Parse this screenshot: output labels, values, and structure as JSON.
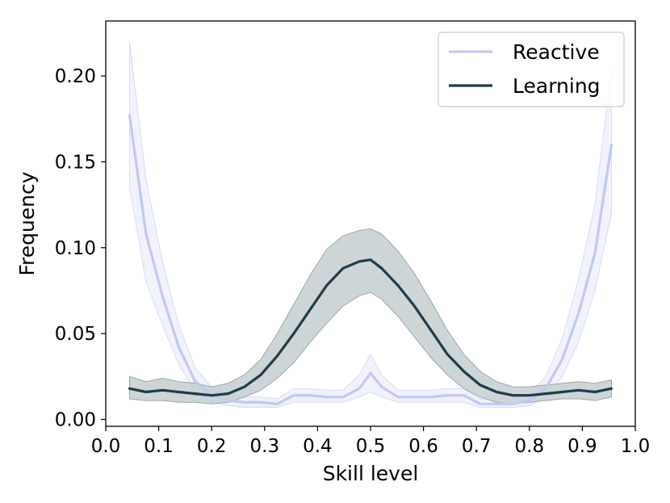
{
  "chart_data": {
    "type": "line",
    "xlabel": "Skill level",
    "ylabel": "Frequency",
    "xlim": [
      0.0,
      1.0
    ],
    "ylim": [
      -0.004,
      0.232
    ],
    "xticks": [
      0.0,
      0.1,
      0.2,
      0.3,
      0.4,
      0.5,
      0.6,
      0.7,
      0.8,
      0.9,
      1.0
    ],
    "xtick_labels": [
      "0.0",
      "0.1",
      "0.2",
      "0.3",
      "0.4",
      "0.5",
      "0.6",
      "0.7",
      "0.8",
      "0.9",
      "1.0"
    ],
    "yticks": [
      0.0,
      0.05,
      0.1,
      0.15,
      0.2
    ],
    "ytick_labels": [
      "0.00",
      "0.05",
      "0.10",
      "0.15",
      "0.20"
    ],
    "grid": false,
    "legend_position": "top-right",
    "x": [
      0.045,
      0.076,
      0.107,
      0.138,
      0.169,
      0.2,
      0.231,
      0.262,
      0.293,
      0.324,
      0.355,
      0.386,
      0.417,
      0.448,
      0.479,
      0.5,
      0.521,
      0.552,
      0.583,
      0.614,
      0.645,
      0.676,
      0.707,
      0.738,
      0.769,
      0.8,
      0.831,
      0.862,
      0.893,
      0.924,
      0.955
    ],
    "series": [
      {
        "name": "Reactive",
        "color": "#c2c8ee",
        "band_color": "#e6e9fa",
        "values": [
          0.177,
          0.108,
          0.072,
          0.042,
          0.022,
          0.014,
          0.011,
          0.01,
          0.01,
          0.009,
          0.014,
          0.014,
          0.013,
          0.013,
          0.018,
          0.027,
          0.019,
          0.013,
          0.013,
          0.013,
          0.014,
          0.014,
          0.009,
          0.009,
          0.009,
          0.011,
          0.018,
          0.035,
          0.062,
          0.097,
          0.16
        ],
        "lower": [
          0.135,
          0.08,
          0.055,
          0.032,
          0.016,
          0.01,
          0.008,
          0.007,
          0.007,
          0.007,
          0.01,
          0.01,
          0.01,
          0.01,
          0.013,
          0.016,
          0.013,
          0.01,
          0.01,
          0.01,
          0.01,
          0.01,
          0.007,
          0.007,
          0.007,
          0.008,
          0.013,
          0.025,
          0.045,
          0.075,
          0.12
        ],
        "upper": [
          0.22,
          0.14,
          0.092,
          0.055,
          0.03,
          0.019,
          0.015,
          0.013,
          0.013,
          0.012,
          0.018,
          0.018,
          0.017,
          0.017,
          0.026,
          0.038,
          0.026,
          0.017,
          0.017,
          0.017,
          0.018,
          0.018,
          0.012,
          0.012,
          0.012,
          0.015,
          0.025,
          0.047,
          0.082,
          0.125,
          0.205
        ]
      },
      {
        "name": "Learning",
        "color": "#1f3c4a",
        "band_color": "#c9d0d3",
        "values": [
          0.018,
          0.016,
          0.017,
          0.016,
          0.015,
          0.014,
          0.015,
          0.019,
          0.026,
          0.037,
          0.05,
          0.064,
          0.078,
          0.088,
          0.092,
          0.093,
          0.088,
          0.078,
          0.066,
          0.052,
          0.038,
          0.028,
          0.02,
          0.016,
          0.014,
          0.014,
          0.015,
          0.016,
          0.017,
          0.016,
          0.018
        ],
        "lower": [
          0.012,
          0.011,
          0.011,
          0.01,
          0.01,
          0.009,
          0.01,
          0.013,
          0.017,
          0.024,
          0.033,
          0.045,
          0.056,
          0.066,
          0.072,
          0.074,
          0.07,
          0.06,
          0.048,
          0.036,
          0.026,
          0.018,
          0.013,
          0.01,
          0.009,
          0.01,
          0.011,
          0.012,
          0.012,
          0.011,
          0.013
        ],
        "upper": [
          0.025,
          0.022,
          0.024,
          0.022,
          0.021,
          0.019,
          0.021,
          0.026,
          0.035,
          0.05,
          0.067,
          0.084,
          0.099,
          0.107,
          0.11,
          0.111,
          0.108,
          0.098,
          0.085,
          0.069,
          0.052,
          0.038,
          0.028,
          0.022,
          0.019,
          0.019,
          0.02,
          0.021,
          0.022,
          0.021,
          0.023
        ]
      }
    ]
  }
}
